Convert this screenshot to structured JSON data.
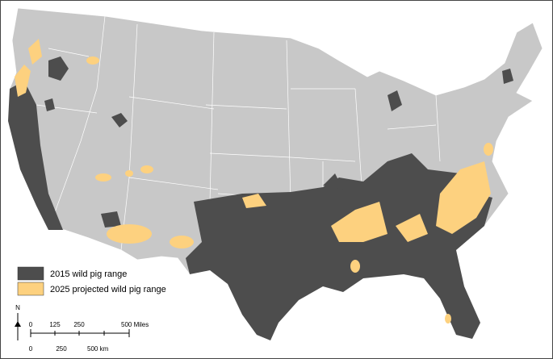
{
  "legend": {
    "items": [
      {
        "label": "2015 wild pig range",
        "color": "#4d4d4d"
      },
      {
        "label": "2025 projected wild pig range",
        "color": "#fdd17f"
      }
    ]
  },
  "scale_bar": {
    "miles": [
      "0",
      "125",
      "250",
      "500 Miles"
    ],
    "km": [
      "0",
      "250",
      "500 km"
    ]
  },
  "north_arrow": "N"
}
